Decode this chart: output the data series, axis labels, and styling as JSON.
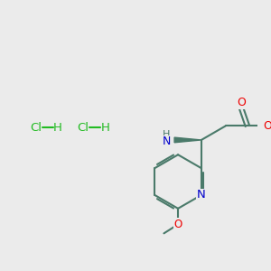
{
  "background_color": "#ebebeb",
  "bond_color": "#4a7a6a",
  "bond_width": 1.5,
  "atom_colors": {
    "O": "#ee0000",
    "N": "#0000cc",
    "C": "#4a7a6a",
    "H": "#4a7a6a",
    "Cl": "#22bb22"
  },
  "font_size_atom": 8.5,
  "font_size_small": 7.5,
  "figsize": [
    3.0,
    3.0
  ],
  "dpi": 100
}
